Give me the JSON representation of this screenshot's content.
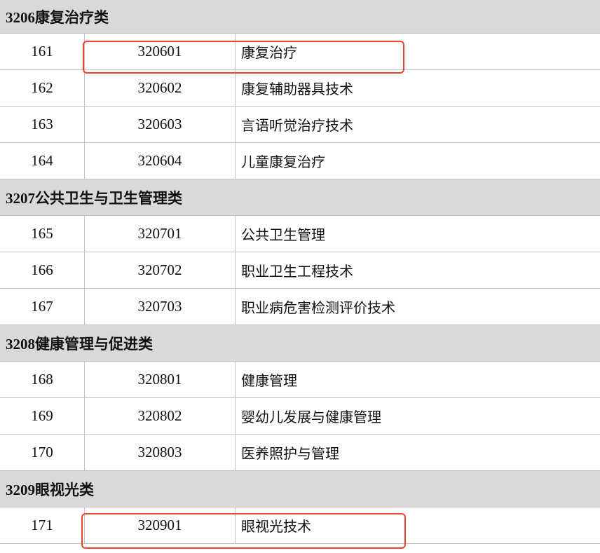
{
  "groups": [
    {
      "title": "3206康复治疗类",
      "rows": [
        {
          "seq": "161",
          "code": "320601",
          "name": "康复治疗",
          "highlighted": true
        },
        {
          "seq": "162",
          "code": "320602",
          "name": "康复辅助器具技术"
        },
        {
          "seq": "163",
          "code": "320603",
          "name": "言语听觉治疗技术"
        },
        {
          "seq": "164",
          "code": "320604",
          "name": "儿童康复治疗"
        }
      ]
    },
    {
      "title": "3207公共卫生与卫生管理类",
      "rows": [
        {
          "seq": "165",
          "code": "320701",
          "name": "公共卫生管理"
        },
        {
          "seq": "166",
          "code": "320702",
          "name": "职业卫生工程技术"
        },
        {
          "seq": "167",
          "code": "320703",
          "name": "职业病危害检测评价技术"
        }
      ]
    },
    {
      "title": "3208健康管理与促进类",
      "rows": [
        {
          "seq": "168",
          "code": "320801",
          "name": "健康管理"
        },
        {
          "seq": "169",
          "code": "320802",
          "name": "婴幼儿发展与健康管理"
        },
        {
          "seq": "170",
          "code": "320803",
          "name": "医养照护与管理"
        }
      ]
    },
    {
      "title": "3209眼视光类",
      "rows": [
        {
          "seq": "171",
          "code": "320901",
          "name": "眼视光技术",
          "highlighted": true
        }
      ]
    }
  ],
  "colors": {
    "group_bg": "#d9d9d9",
    "border": "#c4c4c4",
    "highlight": "#e8452c"
  }
}
